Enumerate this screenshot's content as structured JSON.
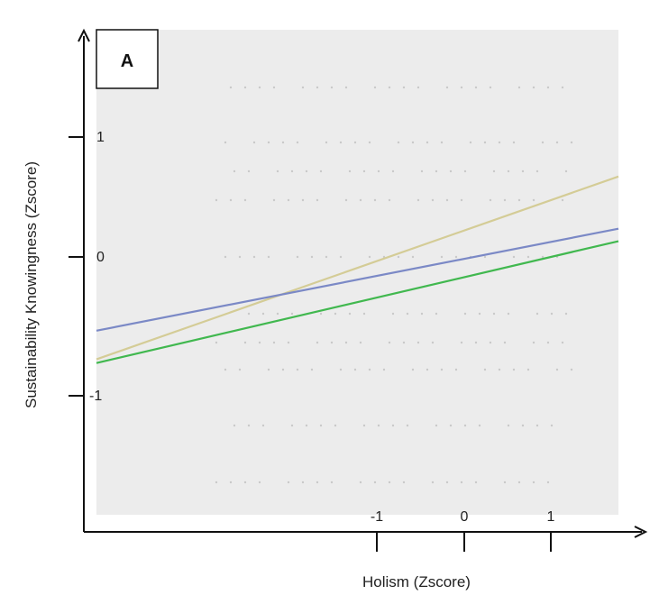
{
  "chart_data": {
    "type": "line",
    "panel_label": "A",
    "xlabel": "Holism (Zscore)",
    "ylabel": "Sustainability Knowingness (Zscore)",
    "xlim": [
      -4.3,
      1.75
    ],
    "ylim": [
      -2.1,
      1.8
    ],
    "x_ticks": [
      -1,
      0,
      1
    ],
    "y_ticks": [
      1,
      0,
      -1
    ],
    "x_tick_labels": [
      "-1",
      "0",
      "1"
    ],
    "y_tick_labels": [
      "1",
      "0",
      "-1"
    ],
    "series": [
      {
        "color": "#d4cc96",
        "x": [
          -4.3,
          1.75
        ],
        "y": [
          -0.85,
          0.62
        ]
      },
      {
        "color": "#7b89c6",
        "x": [
          -4.3,
          1.75
        ],
        "y": [
          -0.62,
          0.2
        ]
      },
      {
        "color": "#41b84f",
        "x": [
          -4.3,
          1.75
        ],
        "y": [
          -0.88,
          0.1
        ]
      }
    ],
    "background_color": "#ececec",
    "grid": false,
    "legend": "none"
  }
}
